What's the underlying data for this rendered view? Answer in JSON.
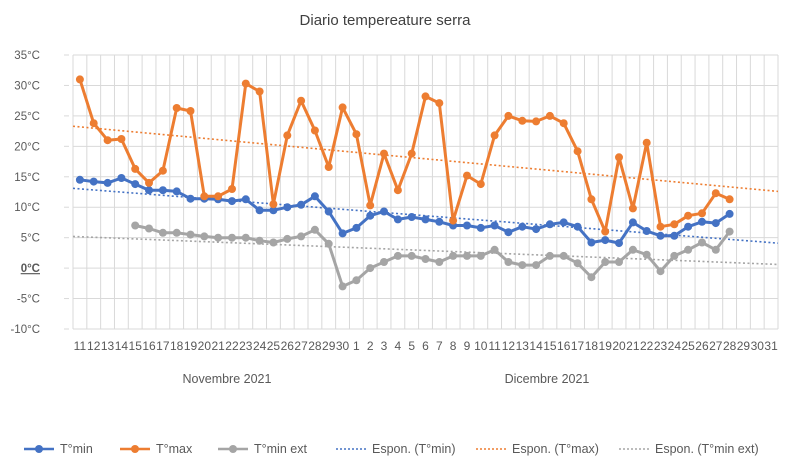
{
  "chart_data": {
    "type": "line",
    "title": "Diario tempereature serra",
    "y_tick_labels": [
      "35°C",
      "30°C",
      "25°C",
      "20°C",
      "15°C",
      "10°C",
      "5°C",
      "0°C",
      "-5°C",
      "-10°C"
    ],
    "y_ticks": [
      35,
      30,
      25,
      20,
      15,
      10,
      5,
      0,
      -5,
      -10
    ],
    "ylim": [
      -10,
      35
    ],
    "grid": true,
    "legend_position": "bottom",
    "x_tick_labels": [
      "11",
      "12",
      "13",
      "14",
      "15",
      "16",
      "17",
      "18",
      "19",
      "20",
      "21",
      "22",
      "23",
      "24",
      "25",
      "26",
      "27",
      "28",
      "29",
      "30",
      "1",
      "2",
      "3",
      "4",
      "5",
      "6",
      "7",
      "8",
      "9",
      "10",
      "11",
      "12",
      "13",
      "14",
      "15",
      "16",
      "17",
      "18",
      "19",
      "20",
      "21",
      "22",
      "23",
      "24",
      "25",
      "26",
      "27",
      "28",
      "29",
      "30",
      "31"
    ],
    "month_labels": [
      "Novembre 2021",
      "Dicembre 2021"
    ],
    "series": [
      {
        "name": "T°min",
        "color": "#4472C4",
        "values": [
          14.5,
          14.2,
          14.0,
          14.8,
          13.8,
          12.8,
          12.8,
          12.6,
          11.4,
          11.4,
          11.3,
          11.0,
          11.3,
          9.5,
          9.5,
          10.0,
          10.4,
          11.8,
          9.3,
          5.7,
          6.6,
          8.6,
          9.3,
          8.0,
          8.4,
          8.0,
          7.6,
          7.0,
          7.0,
          6.6,
          7.0,
          5.9,
          6.8,
          6.4,
          7.2,
          7.5,
          6.8,
          4.2,
          4.6,
          4.1,
          7.5,
          6.1,
          5.3,
          5.3,
          6.8,
          7.6,
          7.4,
          8.9,
          null,
          null,
          null
        ]
      },
      {
        "name": "T°max",
        "color": "#ED7D31",
        "values": [
          31.0,
          23.8,
          21.0,
          21.2,
          16.3,
          14.0,
          16.0,
          26.3,
          25.8,
          11.8,
          11.8,
          13.0,
          30.3,
          29.0,
          10.5,
          21.8,
          27.5,
          22.6,
          16.6,
          26.4,
          22.0,
          10.3,
          18.8,
          12.8,
          18.8,
          28.2,
          27.1,
          7.8,
          15.2,
          13.8,
          21.8,
          25.0,
          24.2,
          24.1,
          25.0,
          23.8,
          19.2,
          11.3,
          6.0,
          18.2,
          9.8,
          20.6,
          6.8,
          7.2,
          8.6,
          9.0,
          12.3,
          11.3,
          null,
          null,
          null
        ]
      },
      {
        "name": "T°min ext",
        "color": "#A5A5A5",
        "values": [
          null,
          null,
          null,
          null,
          7.0,
          6.5,
          5.8,
          5.8,
          5.5,
          5.2,
          5.0,
          5.0,
          5.0,
          4.5,
          4.2,
          4.8,
          5.2,
          6.3,
          4.0,
          -3.0,
          -2.0,
          0.0,
          1.0,
          2.0,
          2.0,
          1.5,
          1.0,
          2.0,
          2.0,
          2.0,
          3.0,
          1.0,
          0.5,
          0.5,
          2.0,
          2.0,
          0.8,
          -1.5,
          1.0,
          1.0,
          3.0,
          2.2,
          -0.5,
          2.0,
          3.0,
          4.2,
          3.0,
          6.0,
          null,
          null,
          null
        ]
      }
    ],
    "trendlines": [
      {
        "name": "Espon. (T°min)",
        "color": "#4472C4",
        "start": 13.1,
        "end": 4.1
      },
      {
        "name": "Espon. (T°max)",
        "color": "#ED7D31",
        "start": 23.3,
        "end": 12.6
      },
      {
        "name": "Espon. (T°min ext)",
        "color": "#A5A5A5",
        "start": 5.2,
        "end": 0.6
      }
    ]
  }
}
